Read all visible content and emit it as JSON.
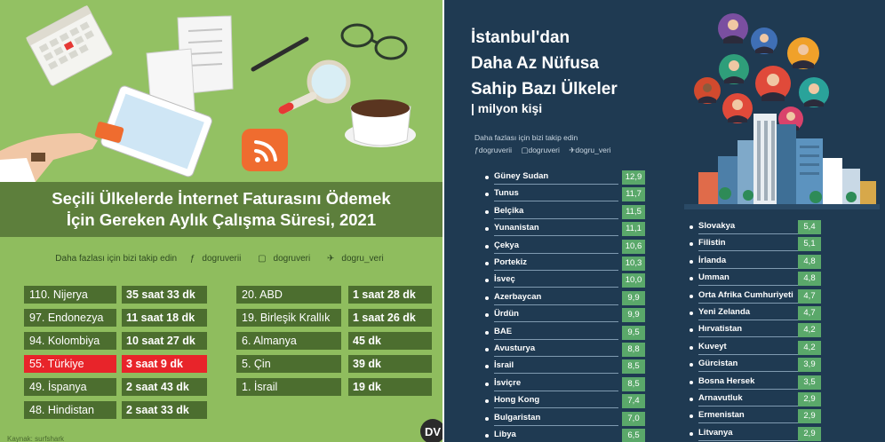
{
  "left": {
    "title_line1": "Seçili Ülkelerde İnternet Faturasını Ödemek",
    "title_line2": "İçin Gereken Aylık Çalışma Süresi, 2021",
    "follow_text": "Daha fazlası için bizi takip edin",
    "social": [
      "dogruverii",
      "dogruveri",
      "dogru_veri"
    ],
    "rows_left": [
      {
        "name": "110. Nijerya",
        "value": "35 saat 33 dk",
        "highlight": false
      },
      {
        "name": "97. Endonezya",
        "value": "11 saat 18 dk",
        "highlight": false
      },
      {
        "name": "94. Kolombiya",
        "value": "10 saat 27 dk",
        "highlight": false
      },
      {
        "name": "55. Türkiye",
        "value": "3 saat 9 dk",
        "highlight": true
      },
      {
        "name": "49. İspanya",
        "value": "2 saat 43 dk",
        "highlight": false
      },
      {
        "name": "48. Hindistan",
        "value": "2 saat 33 dk",
        "highlight": false
      }
    ],
    "rows_right": [
      {
        "name": "20. ABD",
        "value": "1 saat 28 dk"
      },
      {
        "name": "19. Birleşik Krallık",
        "value": "1 saat 26 dk"
      },
      {
        "name": "6. Almanya",
        "value": "45 dk"
      },
      {
        "name": "5. Çin",
        "value": "39 dk"
      },
      {
        "name": "1. İsrail",
        "value": "19 dk"
      }
    ],
    "footer": "Kaynak: surfshark",
    "logo": "DV"
  },
  "right": {
    "title_lines": [
      "İstanbul'dan",
      "Daha Az Nüfusa",
      "Sahip Bazı Ülkeler"
    ],
    "subtitle": "| milyon kişi",
    "follow_text": "Daha fazlası için bizi takip edin",
    "social": [
      "dogruverii",
      "dogruveri",
      "dogru_veri"
    ],
    "col1": [
      {
        "name": "Güney Sudan",
        "value": "12,9"
      },
      {
        "name": "Tunus",
        "value": "11,7"
      },
      {
        "name": "Belçika",
        "value": "11,5"
      },
      {
        "name": "Yunanistan",
        "value": "11,1"
      },
      {
        "name": "Çekya",
        "value": "10,6"
      },
      {
        "name": "Portekiz",
        "value": "10,3"
      },
      {
        "name": "İsveç",
        "value": "10,0"
      },
      {
        "name": "Azerbaycan",
        "value": "9,9"
      },
      {
        "name": "Ürdün",
        "value": "9,9"
      },
      {
        "name": "BAE",
        "value": "9,5"
      },
      {
        "name": "Avusturya",
        "value": "8,8"
      },
      {
        "name": "İsrail",
        "value": "8,5"
      },
      {
        "name": "İsviçre",
        "value": "8,5"
      },
      {
        "name": "Hong Kong",
        "value": "7,4"
      },
      {
        "name": "Bulgaristan",
        "value": "7,0"
      },
      {
        "name": "Libya",
        "value": "6,5"
      }
    ],
    "col2": [
      {
        "name": "Slovakya",
        "value": "5,4"
      },
      {
        "name": "Filistin",
        "value": "5,1"
      },
      {
        "name": "İrlanda",
        "value": "4,8"
      },
      {
        "name": "Umman",
        "value": "4,8"
      },
      {
        "name": "Orta Afrika Cumhuriyeti",
        "value": "4,7"
      },
      {
        "name": "Yeni Zelanda",
        "value": "4,7"
      },
      {
        "name": "Hırvatistan",
        "value": "4,2"
      },
      {
        "name": "Kuveyt",
        "value": "4,2"
      },
      {
        "name": "Gürcistan",
        "value": "3,9"
      },
      {
        "name": "Bosna Hersek",
        "value": "3,5"
      },
      {
        "name": "Arnavutluk",
        "value": "2,9"
      },
      {
        "name": "Ermenistan",
        "value": "2,9"
      },
      {
        "name": "Litvanya",
        "value": "2,9"
      }
    ]
  },
  "colors": {
    "left_bg": "#8fbd5e",
    "left_band": "#5d7f3c",
    "cell_bg": "#4c6e2f",
    "highlight": "#e8242a",
    "right_bg": "#1f3a52",
    "value_green": "#5aa86a"
  }
}
